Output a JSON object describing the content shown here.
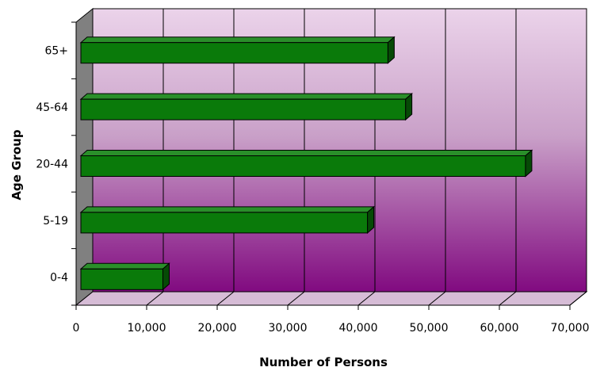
{
  "chart_data": {
    "type": "bar",
    "orientation": "horizontal",
    "categories": [
      "0-4",
      "5-19",
      "20-44",
      "45-64",
      "65+"
    ],
    "values": [
      12300,
      41300,
      63700,
      46700,
      44200
    ],
    "xlabel": "Number of Persons",
    "ylabel": "Age Group",
    "xlim": [
      0,
      70000
    ],
    "xticks": [
      "0",
      "10,000",
      "20,000",
      "30,000",
      "40,000",
      "50,000",
      "60,000",
      "70,000"
    ],
    "grid": true,
    "legend": "none",
    "colors": {
      "bar_front": "#0a7a0a",
      "bar_top": "#2a8f2a",
      "bar_side": "#064a06",
      "wall_top": "#ebd3ea",
      "wall_bottom": "#810a80",
      "floor": "#d6bcd6",
      "left_wall": "#808080"
    }
  }
}
